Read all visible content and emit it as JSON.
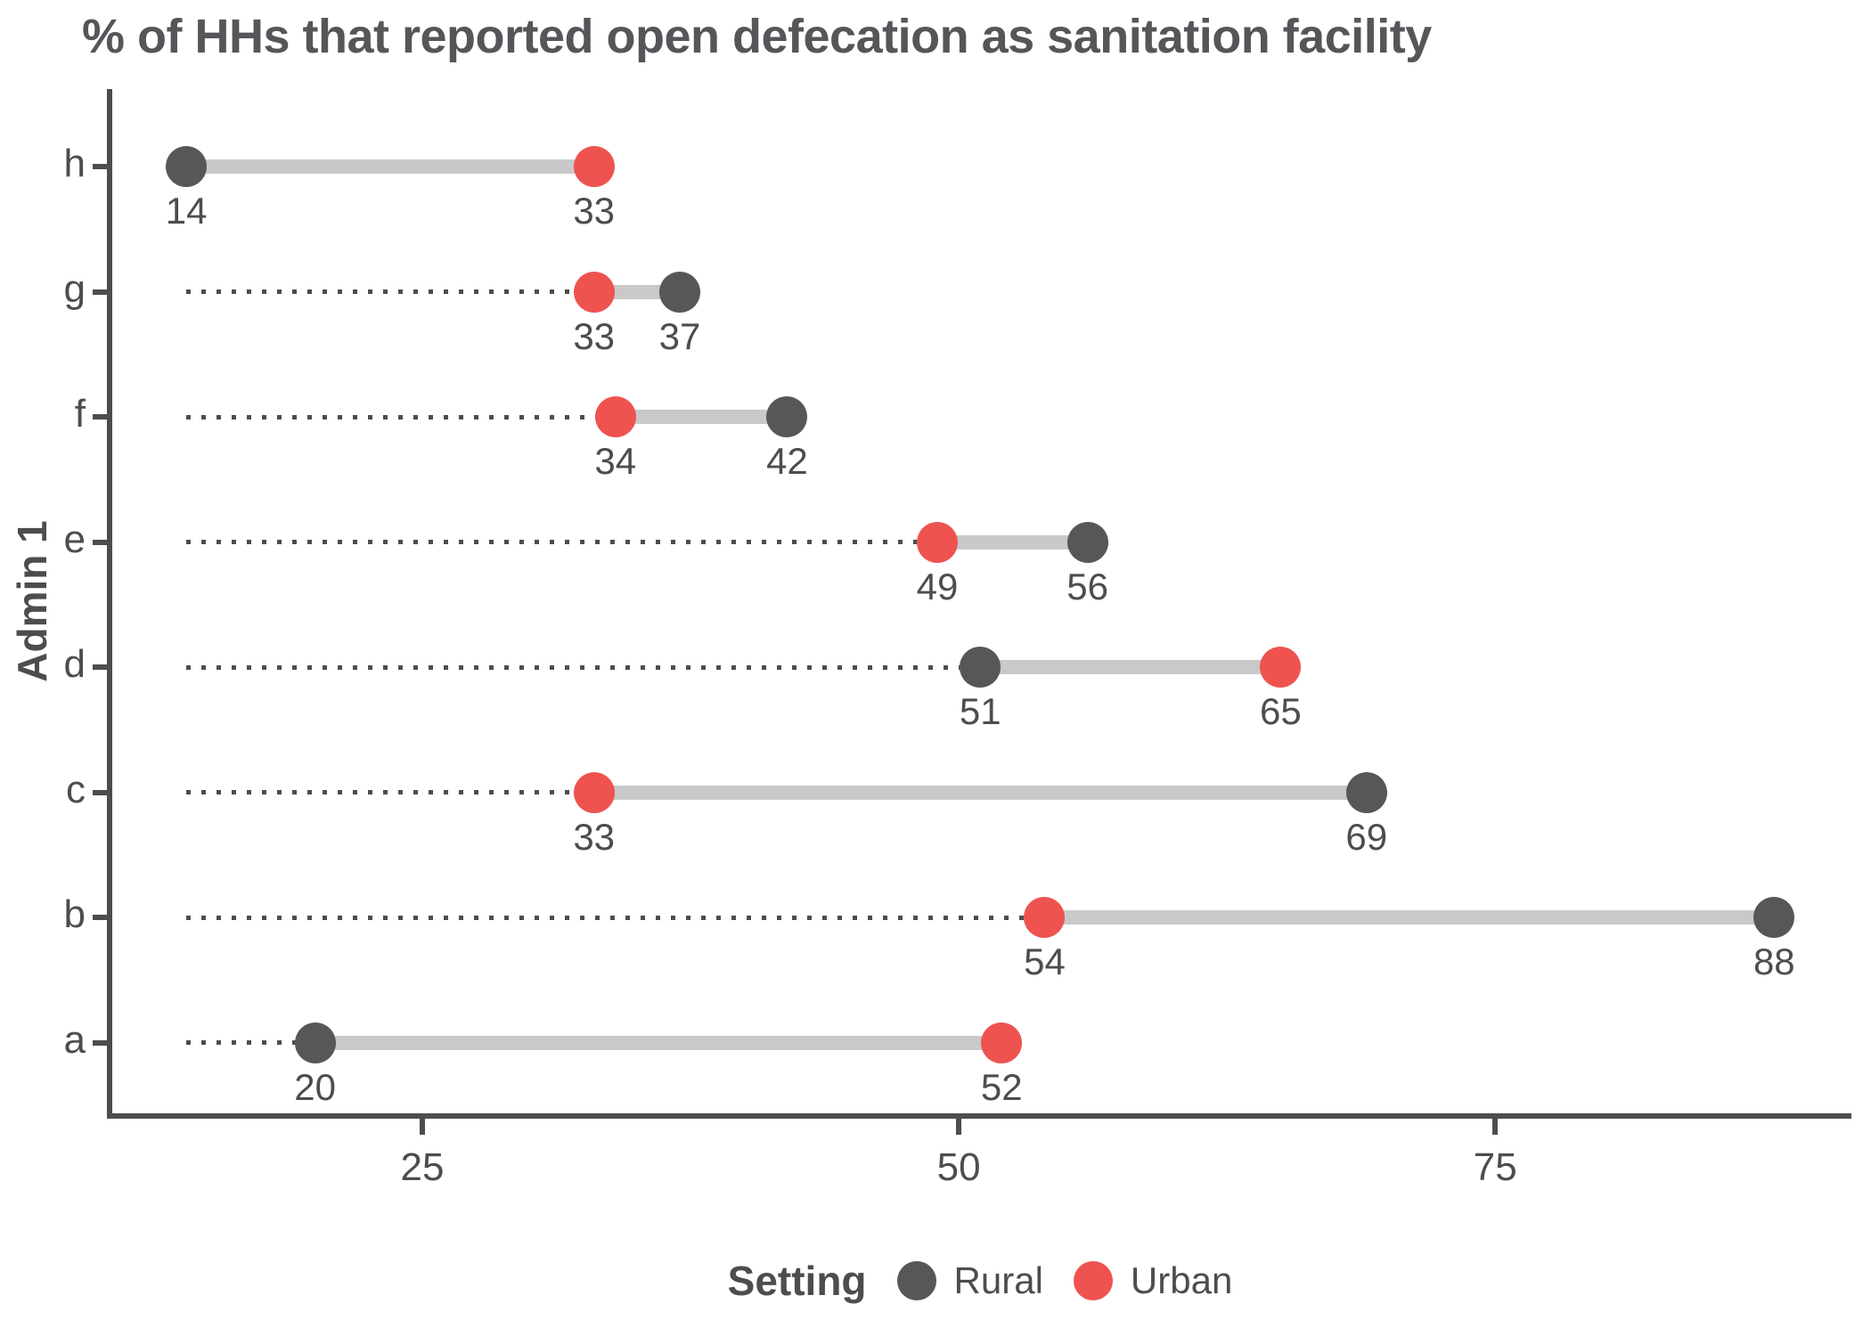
{
  "title": "% of HHs that reported open defecation as sanitation facility",
  "y_axis": {
    "label": "Admin 1",
    "categories": [
      "h",
      "g",
      "f",
      "e",
      "d",
      "c",
      "b",
      "a"
    ]
  },
  "x_axis": {
    "tick_labels": [
      "25",
      "50",
      "75"
    ]
  },
  "legend": {
    "title": "Setting",
    "items": [
      {
        "label": "Rural",
        "color": "#57575A"
      },
      {
        "label": "Urban",
        "color": "#EE5350"
      }
    ]
  },
  "colors": {
    "rural": "#57575A",
    "urban": "#EE5350",
    "connector": "#C9C9C9",
    "leader": "#4D4D4D",
    "axis": "#4D4D4D",
    "text": "#4D4D4D",
    "title": "#56565A"
  },
  "chart_data": {
    "type": "dumbbell",
    "title": "% of HHs that reported open defecation as sanitation facility",
    "categories": [
      "h",
      "g",
      "f",
      "e",
      "d",
      "c",
      "b",
      "a"
    ],
    "series": [
      {
        "name": "Rural",
        "color": "#57575A",
        "values": [
          14,
          37,
          42,
          56,
          51,
          69,
          88,
          20
        ]
      },
      {
        "name": "Urban",
        "color": "#EE5350",
        "values": [
          33,
          33,
          34,
          49,
          65,
          33,
          54,
          52
        ]
      }
    ],
    "x_ticks": [
      25,
      50,
      75
    ],
    "x_axis_range": [
      10.3,
      91.6
    ],
    "leader_start_value": 14,
    "value_labels_shown": true,
    "xlabel": "",
    "ylabel": "Admin 1",
    "grid": false,
    "legend_position": "bottom",
    "legend_title": "Setting"
  }
}
